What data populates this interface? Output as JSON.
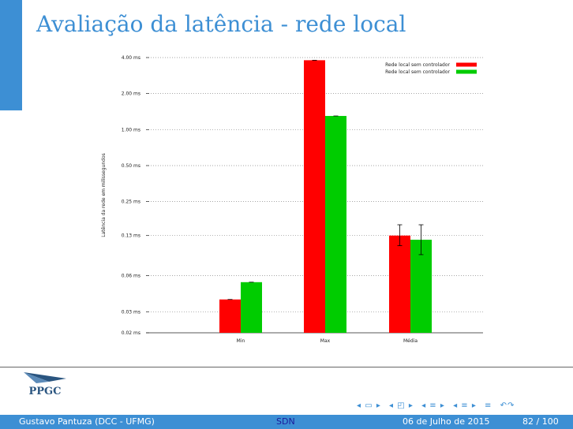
{
  "slide": {
    "title": "Avaliação da latência - rede local"
  },
  "chart_data": {
    "type": "bar",
    "ylabel": "Latência da rede em milissegundos",
    "yscale": "log",
    "yticks": [
      {
        "value": 0.02,
        "label": "0.02 ms"
      },
      {
        "value": 0.03,
        "label": "0.03 ms"
      },
      {
        "value": 0.06,
        "label": "0.06 ms"
      },
      {
        "value": 0.13,
        "label": "0.13 ms"
      },
      {
        "value": 0.25,
        "label": "0.25 ms"
      },
      {
        "value": 0.5,
        "label": "0.50 ms"
      },
      {
        "value": 1.0,
        "label": "1.00 ms"
      },
      {
        "value": 2.0,
        "label": "2.00 ms"
      },
      {
        "value": 4.0,
        "label": "4.00 ms"
      }
    ],
    "ylim": [
      0.02,
      4.0
    ],
    "categories": [
      "Min",
      "Max",
      "Média"
    ],
    "series": [
      {
        "name": "Rede local sem controlador",
        "color": "#ff0000",
        "values": [
          0.038,
          3.8,
          0.13
        ],
        "err": [
          null,
          null,
          [
            0.107,
            0.16
          ]
        ]
      },
      {
        "name": "Rede local sem controlador",
        "color": "#00cc00",
        "values": [
          0.053,
          1.3,
          0.12
        ],
        "err": [
          null,
          null,
          [
            0.09,
            0.16
          ]
        ]
      }
    ],
    "legend": "top-right",
    "grid": "horizontal-dotted"
  },
  "footer": {
    "author": "Gustavo Pantuza (DCC - UFMG)",
    "topic": "SDN",
    "date": "06 de Julho de 2015",
    "page": "82 / 100"
  },
  "nav": {
    "symbols": [
      "◂ ▭ ▸",
      "◂ ◰ ▸",
      "◂ ≡ ▸",
      "◂ ≡ ▸",
      "≡",
      "↶↷"
    ]
  },
  "logo": {
    "text": "PPGC"
  }
}
